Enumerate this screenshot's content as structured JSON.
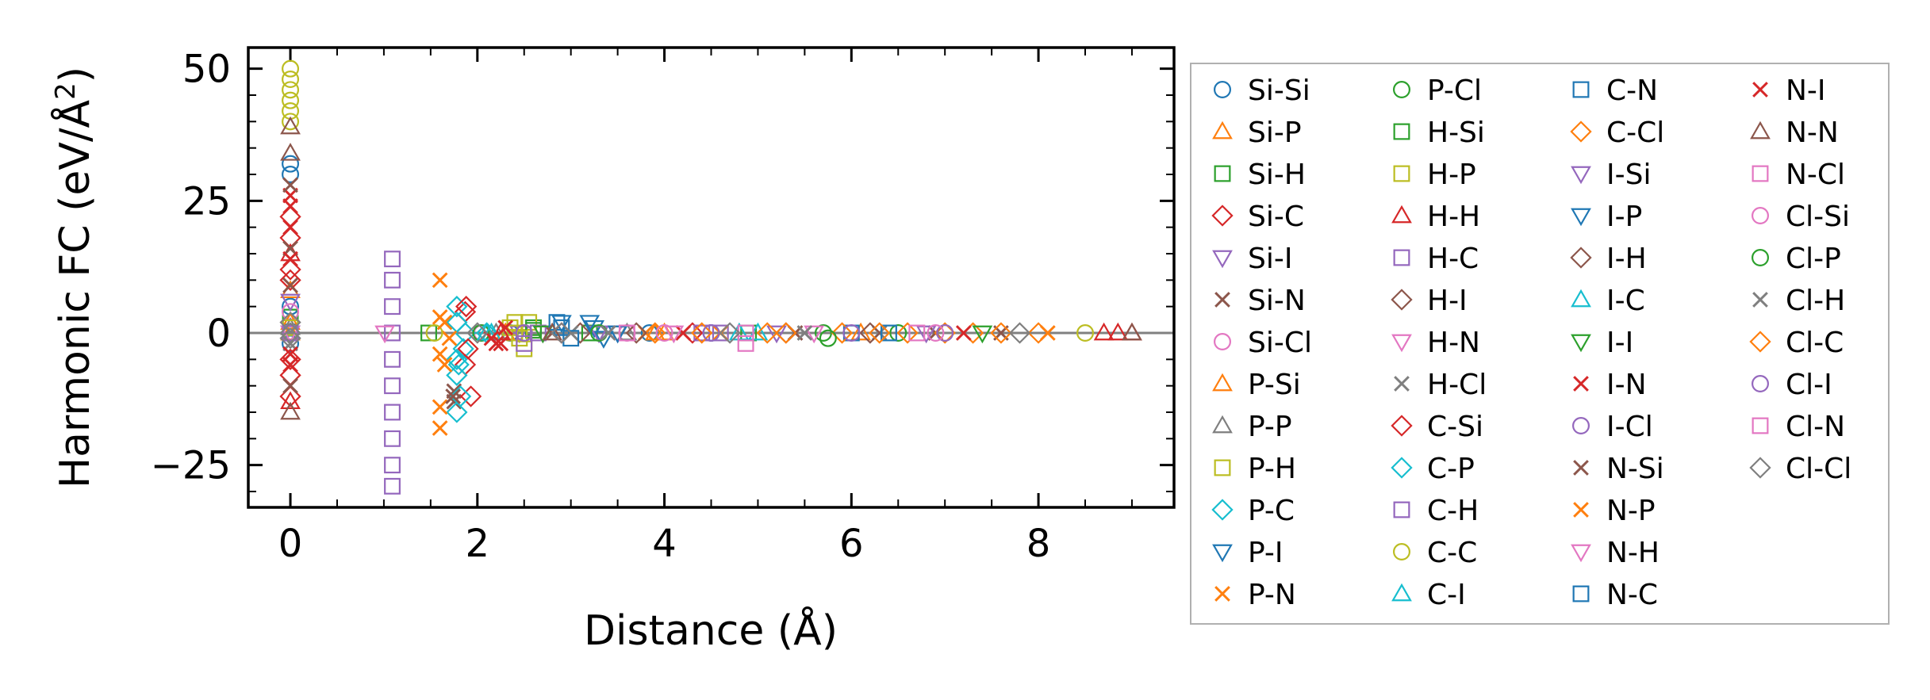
{
  "chart_data": {
    "type": "scatter",
    "xlabel": "Distance (Å)",
    "ylabel_main": "Harmonic FC (eV/Å",
    "ylabel_sup": "2",
    "ylabel_end": ")",
    "xlim": [
      -0.45,
      9.45
    ],
    "ylim": [
      -33,
      54
    ],
    "x_ticks": [
      0,
      2,
      4,
      6,
      8
    ],
    "y_ticks": [
      -25,
      0,
      25,
      50
    ],
    "y_tick_labels": [
      "−25",
      "0",
      "25",
      "50"
    ],
    "legend_placement": "outside-right",
    "legend_columns": 4,
    "series": [
      {
        "name": "Si-Si",
        "marker": "circle",
        "color": "#1f77b4",
        "points": [
          [
            0,
            32
          ],
          [
            0,
            30
          ],
          [
            0,
            5
          ],
          [
            0,
            0
          ],
          [
            0,
            -2
          ],
          [
            2.35,
            0
          ],
          [
            3.84,
            0
          ],
          [
            4.5,
            0
          ]
        ]
      },
      {
        "name": "Si-P",
        "marker": "triangle-up",
        "color": "#ff7f0e",
        "points": [
          [
            0,
            8
          ],
          [
            0,
            0
          ],
          [
            2.3,
            0
          ],
          [
            3.9,
            0
          ]
        ]
      },
      {
        "name": "Si-H",
        "marker": "square",
        "color": "#2ca02c",
        "points": [
          [
            0,
            3
          ],
          [
            1.48,
            0
          ],
          [
            2.6,
            1
          ],
          [
            3.2,
            0
          ]
        ]
      },
      {
        "name": "Si-C",
        "marker": "diamond",
        "color": "#d62728",
        "points": [
          [
            0,
            10
          ],
          [
            0,
            -5
          ],
          [
            1.87,
            4
          ],
          [
            1.87,
            -6
          ],
          [
            2.9,
            0
          ],
          [
            4.3,
            0
          ]
        ]
      },
      {
        "name": "Si-I",
        "marker": "triangle-down",
        "color": "#9467bd",
        "points": [
          [
            0,
            6
          ],
          [
            2.45,
            0
          ],
          [
            3.5,
            0
          ],
          [
            5.2,
            0
          ]
        ]
      },
      {
        "name": "Si-N",
        "marker": "x",
        "color": "#8c564b",
        "points": [
          [
            0,
            9
          ],
          [
            1.75,
            -13
          ],
          [
            1.75,
            -11
          ],
          [
            2.8,
            0
          ],
          [
            6.9,
            0
          ],
          [
            7.6,
            0
          ]
        ]
      },
      {
        "name": "Si-Cl",
        "marker": "circle",
        "color": "#e377c2",
        "points": [
          [
            0,
            4
          ],
          [
            2.05,
            0
          ],
          [
            3.6,
            0
          ]
        ]
      },
      {
        "name": "P-Si",
        "marker": "triangle-up",
        "color": "#ff7f0e",
        "points": [
          [
            0,
            2
          ],
          [
            2.3,
            0
          ],
          [
            4.0,
            0
          ],
          [
            6.1,
            0
          ]
        ]
      },
      {
        "name": "P-P",
        "marker": "triangle-up",
        "color": "#7f7f7f",
        "points": [
          [
            0,
            1
          ],
          [
            2.2,
            0
          ],
          [
            3.6,
            0
          ]
        ]
      },
      {
        "name": "P-H",
        "marker": "square",
        "color": "#bcbd22",
        "points": [
          [
            0,
            1
          ],
          [
            2.4,
            2
          ],
          [
            2.4,
            0
          ],
          [
            2.5,
            -3
          ],
          [
            2.55,
            2
          ]
        ]
      },
      {
        "name": "P-C",
        "marker": "diamond",
        "color": "#17becf",
        "points": [
          [
            1.78,
            5
          ],
          [
            1.78,
            2
          ],
          [
            1.78,
            -5
          ],
          [
            1.78,
            -8
          ],
          [
            1.78,
            -15
          ],
          [
            1.85,
            -3
          ],
          [
            1.87,
            0
          ]
        ]
      },
      {
        "name": "P-I",
        "marker": "triangle-down",
        "color": "#1f77b4",
        "points": [
          [
            0,
            0
          ],
          [
            2.9,
            2
          ],
          [
            3.25,
            1
          ],
          [
            3.35,
            -1
          ]
        ]
      },
      {
        "name": "P-N",
        "marker": "x",
        "color": "#ff7f0e",
        "points": [
          [
            1.6,
            10
          ],
          [
            1.6,
            3
          ],
          [
            1.6,
            -4
          ],
          [
            1.6,
            -14
          ],
          [
            1.6,
            -18
          ],
          [
            1.7,
            -1
          ],
          [
            3.8,
            0
          ],
          [
            8.1,
            0
          ]
        ]
      },
      {
        "name": "P-Cl",
        "marker": "circle",
        "color": "#2ca02c",
        "points": [
          [
            2.04,
            0
          ],
          [
            5.7,
            0
          ],
          [
            6.5,
            0
          ]
        ]
      },
      {
        "name": "H-Si",
        "marker": "square",
        "color": "#2ca02c",
        "points": [
          [
            2.6,
            0.5
          ],
          [
            4.9,
            0
          ]
        ]
      },
      {
        "name": "H-P",
        "marker": "square",
        "color": "#bcbd22",
        "points": [
          [
            2.35,
            1
          ],
          [
            2.45,
            -1
          ]
        ]
      },
      {
        "name": "H-H",
        "marker": "triangle-up",
        "color": "#d62728",
        "points": [
          [
            0,
            15
          ],
          [
            0,
            -13
          ],
          [
            2.25,
            0
          ],
          [
            8.7,
            0
          ],
          [
            8.85,
            0
          ],
          [
            9.0,
            0
          ]
        ]
      },
      {
        "name": "H-C",
        "marker": "square",
        "color": "#9467bd",
        "points": [
          [
            1.09,
            14
          ],
          [
            1.09,
            10
          ],
          [
            1.09,
            5
          ],
          [
            1.09,
            0
          ],
          [
            1.09,
            -5
          ],
          [
            1.09,
            -10
          ],
          [
            1.09,
            -15
          ],
          [
            1.09,
            -20
          ],
          [
            1.09,
            -25
          ],
          [
            1.09,
            -29
          ],
          [
            2.65,
            0
          ],
          [
            4.4,
            0
          ]
        ]
      },
      {
        "name": "H-I",
        "marker": "diamond",
        "color": "#8c564b",
        "points": [
          [
            3.1,
            0
          ],
          [
            5.3,
            0
          ]
        ]
      },
      {
        "name": "H-N",
        "marker": "triangle-down",
        "color": "#e377c2",
        "points": [
          [
            0,
            0
          ],
          [
            2.7,
            0
          ],
          [
            5.6,
            0
          ]
        ]
      },
      {
        "name": "H-Cl",
        "marker": "x",
        "color": "#7f7f7f",
        "points": [
          [
            0,
            -2
          ],
          [
            3.0,
            0
          ],
          [
            6.3,
            0
          ]
        ]
      },
      {
        "name": "C-Si",
        "marker": "diamond",
        "color": "#d62728",
        "points": [
          [
            0,
            22
          ],
          [
            0,
            18
          ],
          [
            0,
            12
          ],
          [
            0,
            -8
          ],
          [
            0,
            -12
          ],
          [
            1.88,
            5
          ],
          [
            1.9,
            -3
          ],
          [
            1.93,
            -12
          ]
        ]
      },
      {
        "name": "C-P",
        "marker": "diamond",
        "color": "#17becf",
        "points": [
          [
            1.8,
            -6
          ],
          [
            1.82,
            -12
          ],
          [
            2.1,
            0
          ]
        ]
      },
      {
        "name": "C-H",
        "marker": "square",
        "color": "#9467bd",
        "points": [
          [
            0,
            0
          ],
          [
            2.5,
            -2
          ],
          [
            4.6,
            0
          ]
        ]
      },
      {
        "name": "C-C",
        "marker": "circle",
        "color": "#bcbd22",
        "points": [
          [
            0,
            50
          ],
          [
            0,
            48
          ],
          [
            0,
            46
          ],
          [
            0,
            44
          ],
          [
            0,
            42
          ],
          [
            0,
            40
          ],
          [
            1.54,
            0
          ],
          [
            2.5,
            0
          ],
          [
            8.5,
            0
          ]
        ]
      },
      {
        "name": "C-I",
        "marker": "triangle-up",
        "color": "#17becf",
        "points": [
          [
            2.1,
            0
          ],
          [
            5.0,
            0
          ]
        ]
      },
      {
        "name": "C-N",
        "marker": "square",
        "color": "#1f77b4",
        "points": [
          [
            2.9,
            1
          ],
          [
            3.0,
            -1
          ],
          [
            6.0,
            0
          ]
        ]
      },
      {
        "name": "C-Cl",
        "marker": "diamond",
        "color": "#ff7f0e",
        "points": [
          [
            3.9,
            0
          ],
          [
            5.1,
            0
          ],
          [
            5.9,
            0
          ],
          [
            6.6,
            0
          ],
          [
            7.0,
            0
          ],
          [
            7.3,
            0
          ]
        ]
      },
      {
        "name": "I-Si",
        "marker": "triangle-down",
        "color": "#9467bd",
        "points": [
          [
            3.3,
            0
          ],
          [
            6.8,
            0
          ]
        ]
      },
      {
        "name": "I-P",
        "marker": "triangle-down",
        "color": "#1f77b4",
        "points": [
          [
            3.2,
            2
          ],
          [
            3.5,
            0
          ]
        ]
      },
      {
        "name": "I-H",
        "marker": "diamond",
        "color": "#8c564b",
        "points": [
          [
            3.7,
            0
          ],
          [
            6.2,
            0
          ]
        ]
      },
      {
        "name": "I-C",
        "marker": "triangle-up",
        "color": "#17becf",
        "points": [
          [
            2.15,
            0
          ],
          [
            4.8,
            0
          ]
        ]
      },
      {
        "name": "I-I",
        "marker": "triangle-down",
        "color": "#2ca02c",
        "points": [
          [
            2.7,
            0
          ],
          [
            7.4,
            0
          ]
        ]
      },
      {
        "name": "I-N",
        "marker": "x",
        "color": "#d62728",
        "points": [
          [
            0,
            26
          ],
          [
            0,
            20
          ],
          [
            0,
            -6
          ],
          [
            2.15,
            -1
          ],
          [
            2.25,
            -2
          ],
          [
            2.3,
            1
          ],
          [
            4.2,
            0
          ]
        ]
      },
      {
        "name": "I-Cl",
        "marker": "circle",
        "color": "#9467bd",
        "points": [
          [
            2.5,
            0
          ],
          [
            7.0,
            0
          ]
        ]
      },
      {
        "name": "N-Si",
        "marker": "x",
        "color": "#8c564b",
        "points": [
          [
            0,
            28
          ],
          [
            0,
            16
          ],
          [
            0,
            -10
          ],
          [
            1.74,
            -12
          ],
          [
            5.4,
            0
          ]
        ]
      },
      {
        "name": "N-P",
        "marker": "x",
        "color": "#ff7f0e",
        "points": [
          [
            1.65,
            -6
          ],
          [
            1.65,
            2
          ],
          [
            4.6,
            0
          ]
        ]
      },
      {
        "name": "N-H",
        "marker": "triangle-down",
        "color": "#e377c2",
        "points": [
          [
            1.01,
            0
          ],
          [
            4.1,
            0
          ]
        ]
      },
      {
        "name": "N-C",
        "marker": "square",
        "color": "#1f77b4",
        "points": [
          [
            2.85,
            2
          ],
          [
            6.4,
            0
          ]
        ]
      },
      {
        "name": "N-I",
        "marker": "x",
        "color": "#d62728",
        "points": [
          [
            0,
            24
          ],
          [
            0,
            14
          ],
          [
            0,
            -4
          ],
          [
            2.2,
            -2
          ],
          [
            7.2,
            0
          ]
        ]
      },
      {
        "name": "N-N",
        "marker": "triangle-up",
        "color": "#8c564b",
        "points": [
          [
            0,
            39
          ],
          [
            0,
            34
          ],
          [
            0,
            -15
          ],
          [
            2.8,
            0
          ],
          [
            9.0,
            0
          ]
        ]
      },
      {
        "name": "N-Cl",
        "marker": "square",
        "color": "#e377c2",
        "points": [
          [
            4.87,
            -2
          ],
          [
            4.87,
            0
          ]
        ]
      },
      {
        "name": "Cl-Si",
        "marker": "circle",
        "color": "#e377c2",
        "points": [
          [
            4.0,
            0
          ],
          [
            6.9,
            0
          ]
        ]
      },
      {
        "name": "Cl-P",
        "marker": "circle",
        "color": "#2ca02c",
        "points": [
          [
            5.75,
            -1
          ],
          [
            3.3,
            0
          ]
        ]
      },
      {
        "name": "Cl-H",
        "marker": "x",
        "color": "#7f7f7f",
        "points": [
          [
            3.4,
            0
          ],
          [
            5.5,
            0
          ]
        ]
      },
      {
        "name": "Cl-C",
        "marker": "diamond",
        "color": "#ff7f0e",
        "points": [
          [
            4.4,
            0
          ],
          [
            5.3,
            0
          ],
          [
            6.3,
            0
          ],
          [
            7.6,
            0
          ],
          [
            8.0,
            0
          ]
        ]
      },
      {
        "name": "Cl-I",
        "marker": "circle",
        "color": "#9467bd",
        "points": [
          [
            4.5,
            0
          ],
          [
            6.0,
            0
          ]
        ]
      },
      {
        "name": "Cl-N",
        "marker": "square",
        "color": "#e377c2",
        "points": [
          [
            3.6,
            0
          ],
          [
            6.7,
            0
          ]
        ]
      },
      {
        "name": "Cl-Cl",
        "marker": "diamond",
        "color": "#7f7f7f",
        "points": [
          [
            0,
            2
          ],
          [
            0,
            0
          ],
          [
            0,
            -1
          ],
          [
            2.0,
            0
          ],
          [
            2.9,
            0
          ],
          [
            4.7,
            0
          ],
          [
            7.8,
            0
          ]
        ]
      }
    ]
  }
}
